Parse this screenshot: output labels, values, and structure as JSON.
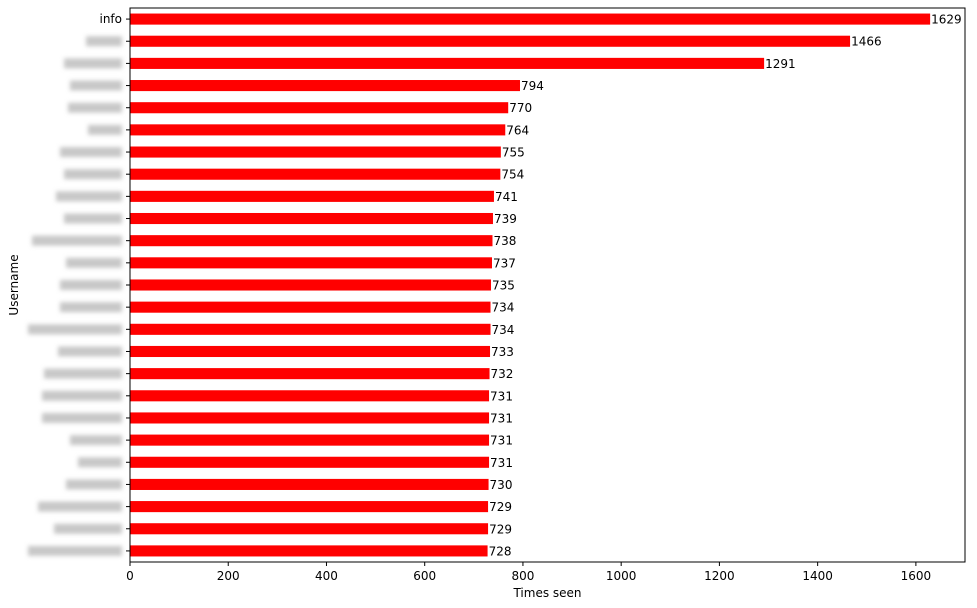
{
  "chart_data": {
    "type": "bar",
    "orientation": "horizontal",
    "xlabel": "Times seen",
    "ylabel": "Username",
    "xlim": [
      0,
      1700
    ],
    "xticks": [
      0,
      200,
      400,
      600,
      800,
      1000,
      1200,
      1400,
      1600
    ],
    "categories": [
      "info",
      "",
      "",
      "",
      "",
      "",
      "",
      "",
      "",
      "",
      "",
      "",
      "",
      "",
      "",
      "",
      "",
      "",
      "",
      "",
      "",
      "",
      "",
      "",
      ""
    ],
    "values": [
      1629,
      1466,
      1291,
      794,
      770,
      764,
      755,
      754,
      741,
      739,
      738,
      737,
      735,
      734,
      734,
      733,
      732,
      731,
      731,
      731,
      731,
      730,
      729,
      729,
      728
    ],
    "bar_color": "#ff0000",
    "blurred_label_widths": [
      0,
      36,
      58,
      52,
      54,
      34,
      62,
      58,
      66,
      58,
      90,
      56,
      62,
      62,
      94,
      64,
      78,
      80,
      80,
      52,
      44,
      56,
      84,
      68,
      94
    ],
    "grid": false,
    "data_labels": true
  }
}
